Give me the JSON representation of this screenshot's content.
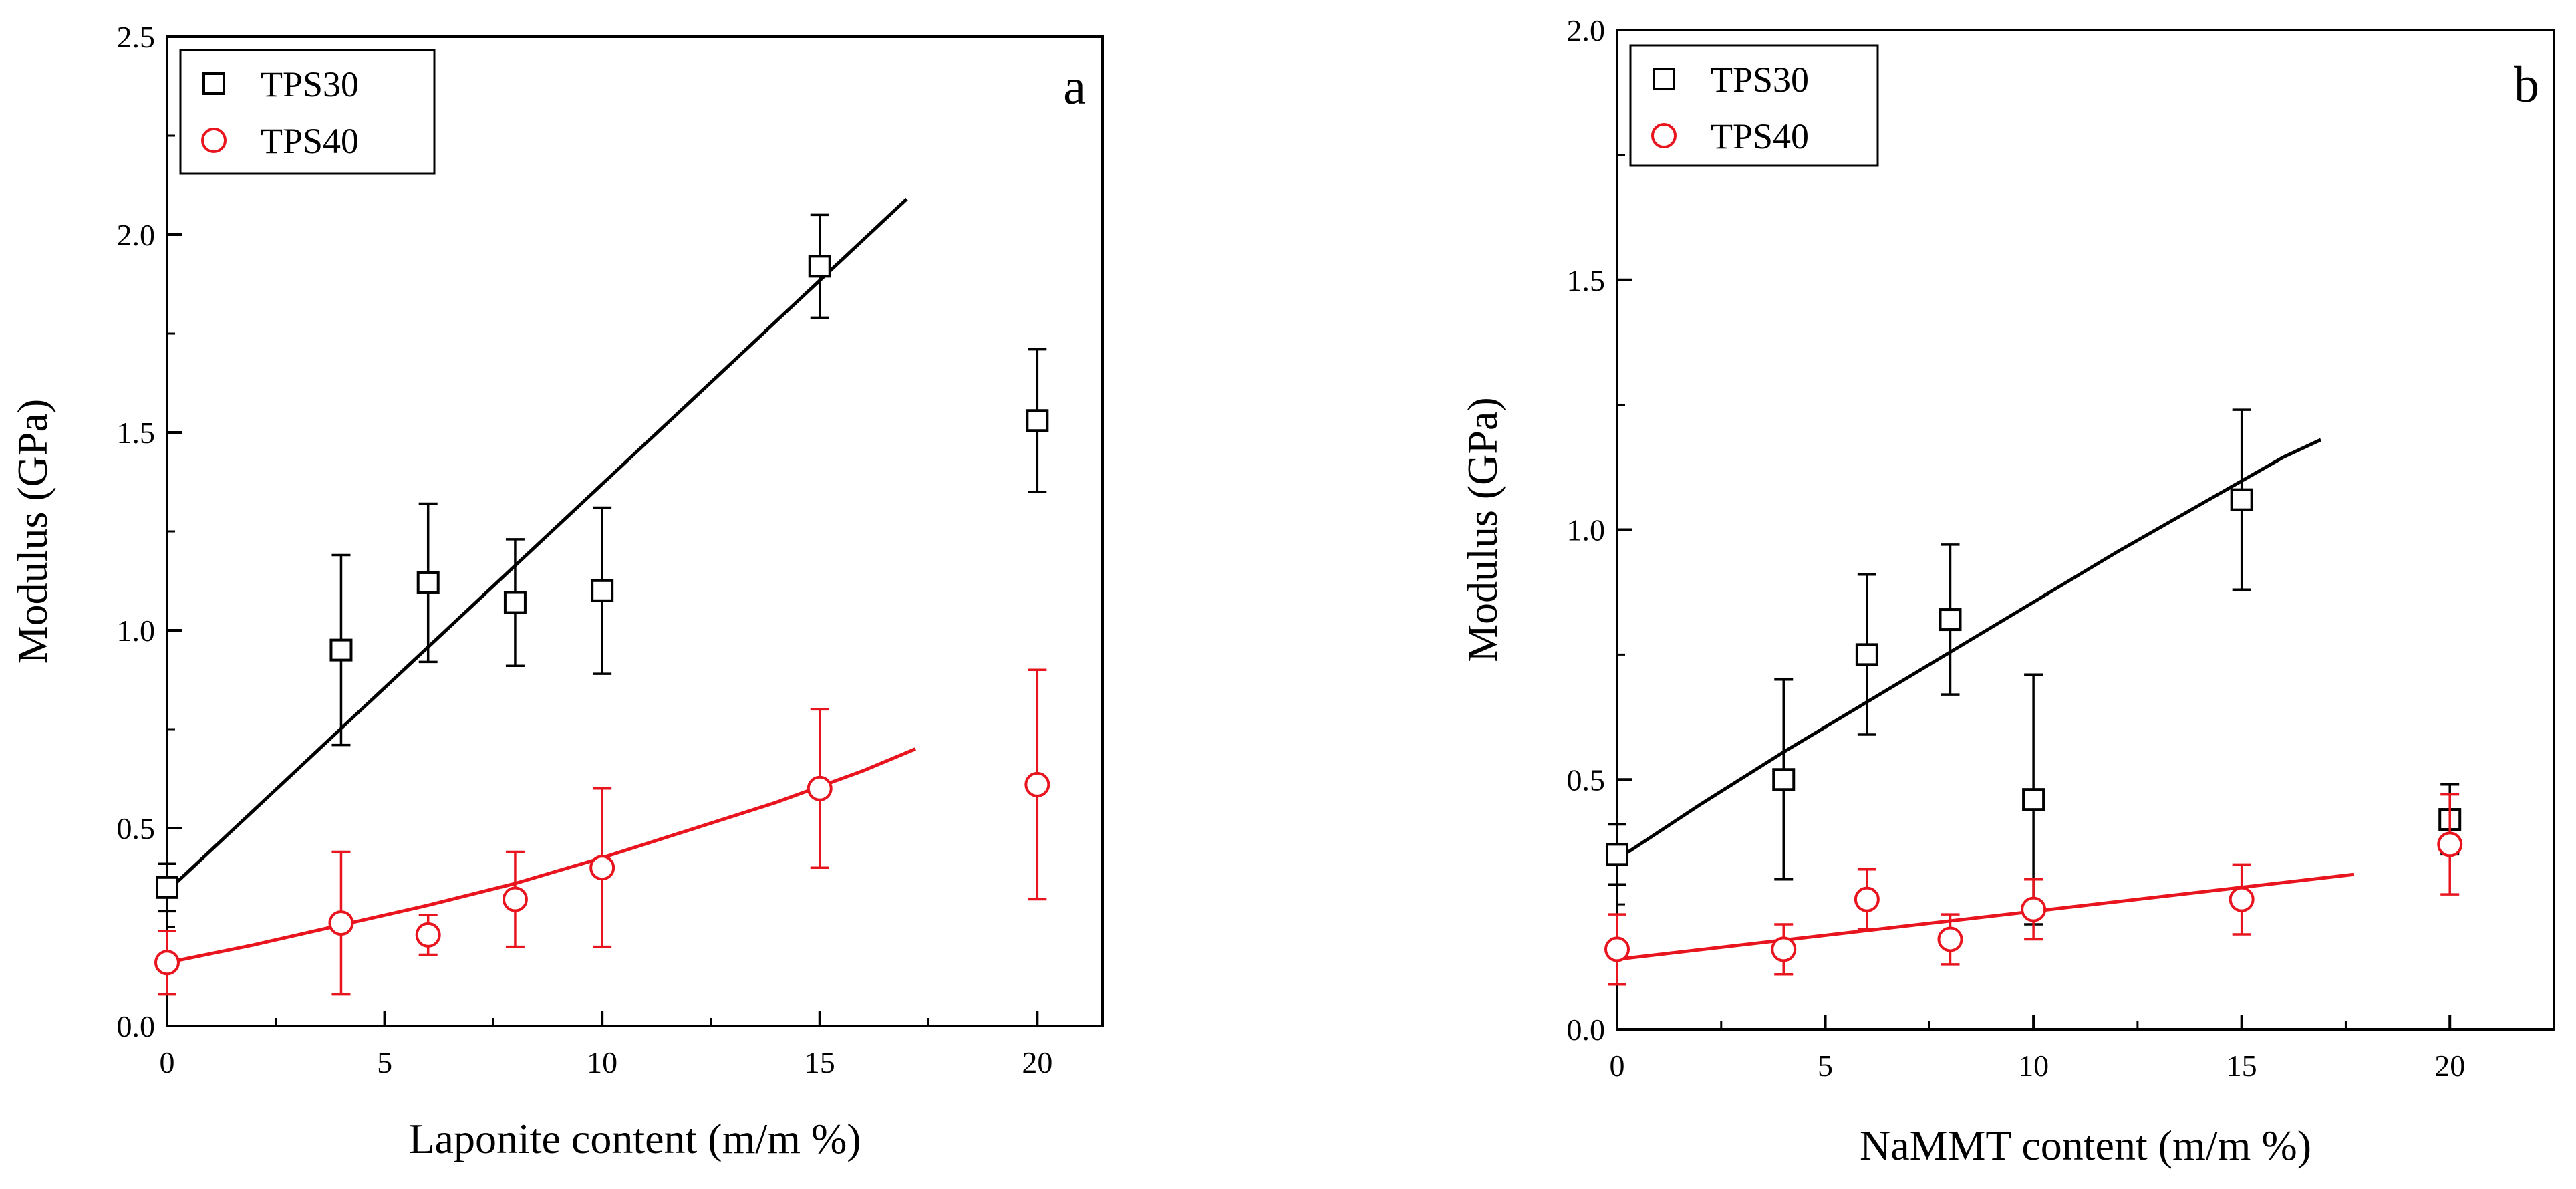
{
  "chart_data": [
    {
      "type": "scatter",
      "panel_label": "a",
      "xlabel": "Laponite content (m/m %)",
      "ylabel": "Modulus (GPa)",
      "xlim": [
        0,
        21.5
      ],
      "ylim": [
        0,
        2.5
      ],
      "xticks": [
        0,
        5,
        10,
        15,
        20
      ],
      "yticks": [
        0.0,
        0.5,
        1.0,
        1.5,
        2.0,
        2.5
      ],
      "ytick_labels": [
        "0.0",
        "0.5",
        "1.0",
        "1.5",
        "2.0",
        "2.5"
      ],
      "legend_position": "top-left",
      "series": [
        {
          "name": "TPS30",
          "marker": "square",
          "color": "#000000",
          "x": [
            0,
            4,
            6,
            8,
            10,
            15,
            20
          ],
          "y": [
            0.35,
            0.95,
            1.12,
            1.07,
            1.1,
            1.92,
            1.53
          ],
          "err_upper": [
            0.41,
            1.19,
            1.32,
            1.23,
            1.31,
            2.05,
            1.71
          ],
          "err_lower": [
            0.29,
            0.71,
            0.92,
            0.91,
            0.89,
            1.79,
            1.35
          ],
          "fit_x": [
            0,
            17
          ],
          "fit_y": [
            0.34,
            2.09
          ]
        },
        {
          "name": "TPS40",
          "marker": "circle",
          "color": "#e8141e",
          "x": [
            0,
            4,
            6,
            8,
            10,
            15,
            20
          ],
          "y": [
            0.16,
            0.26,
            0.23,
            0.32,
            0.4,
            0.6,
            0.61
          ],
          "err_upper": [
            0.24,
            0.44,
            0.28,
            0.44,
            0.6,
            0.8,
            0.9
          ],
          "err_lower": [
            0.08,
            0.08,
            0.18,
            0.2,
            0.2,
            0.4,
            0.32
          ],
          "fit_x": [
            0,
            2,
            4,
            6,
            8,
            10,
            12,
            14,
            16,
            17.2
          ],
          "fit_y": [
            0.16,
            0.205,
            0.255,
            0.305,
            0.36,
            0.425,
            0.495,
            0.565,
            0.645,
            0.7
          ]
        }
      ]
    },
    {
      "type": "scatter",
      "panel_label": "b",
      "xlabel": "NaMMT content (m/m %)",
      "ylabel": "Modulus (GPa)",
      "xlim": [
        0,
        22.5
      ],
      "ylim": [
        0,
        2.0
      ],
      "xticks": [
        0,
        5,
        10,
        15,
        20
      ],
      "yticks": [
        0.0,
        0.5,
        1.0,
        1.5,
        2.0
      ],
      "ytick_labels": [
        "0.0",
        "0.5",
        "1.0",
        "1.5",
        "2.0"
      ],
      "legend_position": "top-left",
      "series": [
        {
          "name": "TPS30",
          "marker": "square",
          "color": "#000000",
          "x": [
            0,
            4,
            6,
            8,
            10,
            15,
            20
          ],
          "y": [
            0.35,
            0.5,
            0.75,
            0.82,
            0.46,
            1.06,
            0.42
          ],
          "err_upper": [
            0.41,
            0.7,
            0.91,
            0.97,
            0.71,
            1.24,
            0.49
          ],
          "err_lower": [
            0.29,
            0.3,
            0.59,
            0.67,
            0.21,
            0.88,
            0.35
          ],
          "fit_x": [
            0,
            2,
            4,
            6,
            8,
            10,
            12,
            14,
            16,
            16.9
          ],
          "fit_y": [
            0.34,
            0.45,
            0.555,
            0.655,
            0.755,
            0.855,
            0.955,
            1.05,
            1.145,
            1.18
          ]
        },
        {
          "name": "TPS40",
          "marker": "circle",
          "color": "#e8141e",
          "x": [
            0,
            4,
            6,
            8,
            10,
            15,
            20
          ],
          "y": [
            0.16,
            0.16,
            0.26,
            0.18,
            0.24,
            0.26,
            0.37
          ],
          "err_upper": [
            0.23,
            0.21,
            0.32,
            0.23,
            0.3,
            0.33,
            0.47
          ],
          "err_lower": [
            0.09,
            0.11,
            0.2,
            0.13,
            0.18,
            0.19,
            0.27
          ],
          "fit_x": [
            0,
            17.7
          ],
          "fit_y": [
            0.14,
            0.31
          ]
        }
      ]
    }
  ]
}
